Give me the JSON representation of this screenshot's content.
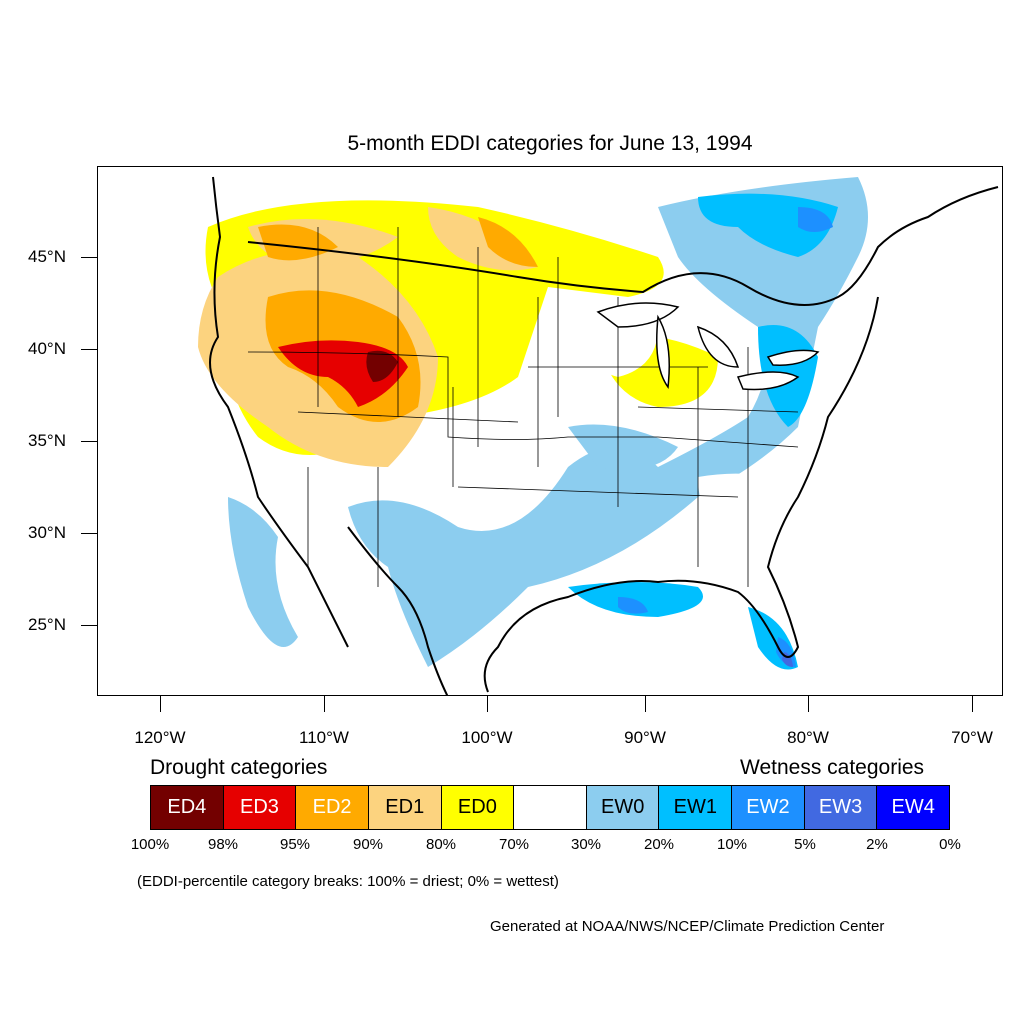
{
  "title": "5-month EDDI categories for June 13, 1994",
  "map": {
    "lat_labels": [
      "45°N",
      "40°N",
      "35°N",
      "30°N",
      "25°N"
    ],
    "lon_labels": [
      "120°W",
      "110°W",
      "100°W",
      "90°W",
      "80°W",
      "70°W"
    ],
    "colors": {
      "ED4": "#730000",
      "ED3": "#e60000",
      "ED2": "#ffaa00",
      "ED1": "#fcd37f",
      "ED0": "#ffff00",
      "neutral": "#ffffff",
      "EW0": "#8ccdef",
      "EW1": "#00bfff",
      "EW2": "#1d90ff",
      "EW3": "#4169e1",
      "EW4": "#0000ff"
    }
  },
  "legend": {
    "drought_heading": "Drought categories",
    "wetness_heading": "Wetness categories",
    "categories": [
      {
        "label": "ED4",
        "color": "#730000",
        "text_color": "#ffffff"
      },
      {
        "label": "ED3",
        "color": "#e60000",
        "text_color": "#ffffff"
      },
      {
        "label": "ED2",
        "color": "#ffaa00",
        "text_color": "#ffffff"
      },
      {
        "label": "ED1",
        "color": "#fcd37f",
        "text_color": "#000000"
      },
      {
        "label": "ED0",
        "color": "#ffff00",
        "text_color": "#000000"
      },
      {
        "label": "",
        "color": "#ffffff",
        "text_color": "#000000"
      },
      {
        "label": "EW0",
        "color": "#8ccdef",
        "text_color": "#000000"
      },
      {
        "label": "EW1",
        "color": "#00bfff",
        "text_color": "#000000"
      },
      {
        "label": "EW2",
        "color": "#1d90ff",
        "text_color": "#ffffff"
      },
      {
        "label": "EW3",
        "color": "#4169e1",
        "text_color": "#ffffff"
      },
      {
        "label": "EW4",
        "color": "#0000ff",
        "text_color": "#ffffff"
      }
    ],
    "breaks": [
      "100%",
      "98%",
      "95%",
      "90%",
      "80%",
      "70%",
      "30%",
      "20%",
      "10%",
      "5%",
      "2%",
      "0%"
    ],
    "note": "(EDDI-percentile category breaks: 100% = driest; 0% = wettest)"
  },
  "credit": "Generated at NOAA/NWS/NCEP/Climate Prediction Center"
}
